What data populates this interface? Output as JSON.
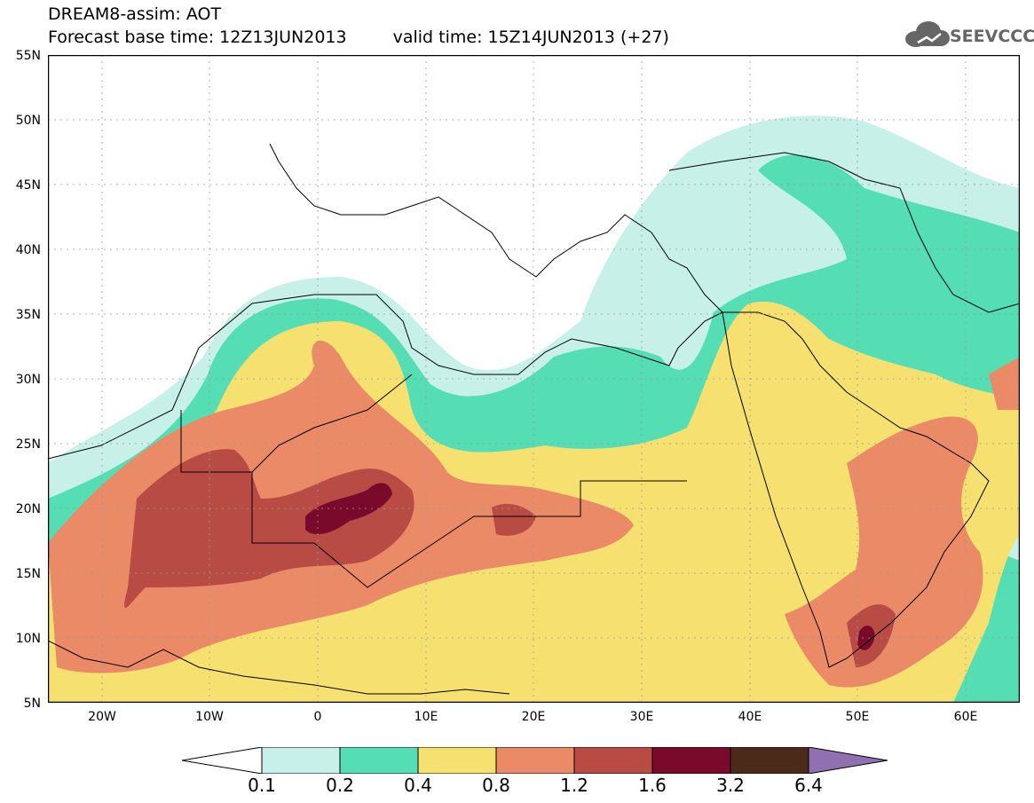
{
  "header": {
    "title": "DREAM8-assim: AOT",
    "base_time": "Forecast base time: 12Z13JUN2013",
    "valid_time": "valid time: 15Z14JUN2013 (+27)",
    "logo_text": "SEEVCCC",
    "logo_icon": "cloud-icon"
  },
  "map": {
    "lat_labels": [
      "55N",
      "50N",
      "45N",
      "40N",
      "35N",
      "30N",
      "25N",
      "20N",
      "15N",
      "10N",
      "5N"
    ],
    "lon_labels": [
      "20W",
      "10W",
      "0",
      "10E",
      "20E",
      "30E",
      "40E",
      "50E",
      "60E"
    ],
    "extent": {
      "lon": [
        -25,
        65
      ],
      "lat": [
        5,
        55
      ]
    }
  },
  "colorbar": {
    "labels": [
      "0.1",
      "0.2",
      "0.4",
      "0.8",
      "1.2",
      "1.6",
      "3.2",
      "6.4"
    ],
    "colors": [
      "#ffffff",
      "#c6f0e8",
      "#55deb4",
      "#f6e070",
      "#ea8a66",
      "#b84c44",
      "#7a0a2c",
      "#4a2a18",
      "#9070b0"
    ]
  }
}
